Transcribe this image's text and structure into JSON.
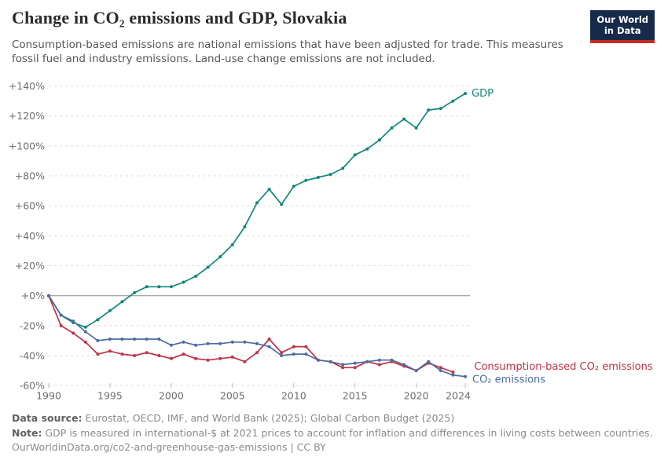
{
  "header": {
    "title": "Change in CO₂ emissions and GDP, Slovakia",
    "subtitle": "Consumption-based emissions are national emissions that have been adjusted for trade. This measures fossil fuel and industry emissions. Land-use change emissions are not included."
  },
  "logo": {
    "line1": "Our World",
    "line2": "in Data",
    "bg_color": "#172A4A",
    "bar_color": "#C62B22"
  },
  "chart_data": {
    "type": "line",
    "title": "Change in CO₂ emissions and GDP, Slovakia",
    "xlabel": "",
    "ylabel": "",
    "xlim": [
      1990,
      2024
    ],
    "ylim": [
      -60,
      140
    ],
    "grid": "horizontal dashed",
    "legend_position": "line-end-labels",
    "x": [
      1990,
      1991,
      1992,
      1993,
      1994,
      1995,
      1996,
      1997,
      1998,
      1999,
      2000,
      2001,
      2002,
      2003,
      2004,
      2005,
      2006,
      2007,
      2008,
      2009,
      2010,
      2011,
      2012,
      2013,
      2014,
      2015,
      2016,
      2017,
      2018,
      2019,
      2020,
      2021,
      2022,
      2023,
      2024
    ],
    "x_ticks": [
      {
        "year": 1990,
        "label": "1990"
      },
      {
        "year": 1995,
        "label": "1995"
      },
      {
        "year": 2000,
        "label": "2000"
      },
      {
        "year": 2005,
        "label": "2005"
      },
      {
        "year": 2010,
        "label": "2010"
      },
      {
        "year": 2015,
        "label": "2015"
      },
      {
        "year": 2020,
        "label": "2020"
      },
      {
        "year": 2024,
        "label": "2024"
      }
    ],
    "y_ticks": [
      {
        "value": 140,
        "label": "+140%"
      },
      {
        "value": 120,
        "label": "+120%"
      },
      {
        "value": 100,
        "label": "+100%"
      },
      {
        "value": 80,
        "label": "+80%"
      },
      {
        "value": 60,
        "label": "+60%"
      },
      {
        "value": 40,
        "label": "+40%"
      },
      {
        "value": 20,
        "label": "+20%"
      },
      {
        "value": 0,
        "label": "+0%"
      },
      {
        "value": -20,
        "label": "-20%"
      },
      {
        "value": -40,
        "label": "-40%"
      },
      {
        "value": -60,
        "label": "-60%"
      }
    ],
    "colors": {
      "gridline": "#DCDCDC",
      "zero_line": "#8C8C8C",
      "axis_text": "#6E6E6E"
    },
    "series": [
      {
        "id": "gdp",
        "name": "GDP",
        "color": "#118778",
        "end_label": {
          "text": "GDP",
          "dx": 8,
          "dy": 4
        },
        "values": [
          0,
          -13,
          -18,
          -21,
          -16,
          -10,
          -4,
          2,
          6,
          6,
          6,
          9,
          13,
          19,
          26,
          34,
          46,
          62,
          71,
          61,
          73,
          77,
          79,
          81,
          85,
          94,
          98,
          104,
          112,
          118,
          112,
          124,
          125,
          130,
          135
        ]
      },
      {
        "id": "consumption-co2",
        "name": "Consumption-based CO₂ emissions",
        "color": "#BE3348",
        "end_label": {
          "text": "Consumption-based CO₂ emissions",
          "dx": 27,
          "dy": -3
        },
        "values": [
          0,
          -20,
          -25,
          -31,
          -39,
          -37,
          -39,
          -40,
          -38,
          -40,
          -42,
          -39,
          -42,
          -43,
          -42,
          -41,
          -44,
          -38,
          -29,
          -38,
          -34,
          -34,
          -43,
          -44,
          -48,
          -48,
          -44,
          -46,
          -44,
          -47,
          -50,
          -45,
          -48,
          -51
        ]
      },
      {
        "id": "co2",
        "name": "CO₂ emissions",
        "color": "#4C6DA0",
        "end_label": {
          "text": "CO₂ emissions",
          "dx": 9,
          "dy": 8
        },
        "values": [
          0,
          -13,
          -17,
          -24,
          -30,
          -29,
          -29,
          -29,
          -29,
          -29,
          -33,
          -31,
          -33,
          -32,
          -32,
          -31,
          -31,
          -32,
          -34,
          -40,
          -39,
          -39,
          -43,
          -44,
          -46,
          -45,
          -44,
          -43,
          -43,
          -46,
          -50,
          -44,
          -50,
          -53,
          -54
        ]
      }
    ]
  },
  "footer": {
    "source_label": "Data source:",
    "source_text": "Eurostat, OECD, IMF, and World Bank (2025); Global Carbon Budget (2025)",
    "note_label": "Note:",
    "note_text": "GDP is measured in international-$ at 2021 prices to account for inflation and differences in living costs between countries.",
    "url": "OurWorldinData.org/co2-and-greenhouse-gas-emissions | CC BY"
  }
}
